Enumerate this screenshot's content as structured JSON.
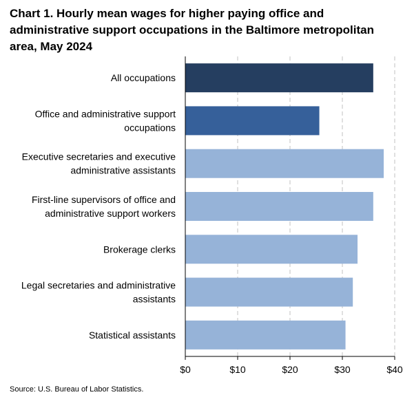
{
  "title_lines": [
    "Chart 1. Hourly mean wages for higher paying office and",
    "administrative support occupations in the Baltimore metropolitan",
    "area, May 2024"
  ],
  "source": "Source: U.S. Bureau of Labor Statistics.",
  "colors": {
    "all_occupations": "#253e60",
    "office_admin": "#36609a",
    "detail": "#96b3d8",
    "grid": "#c0c0c0",
    "axis": "#000000"
  },
  "chart_data": {
    "type": "bar",
    "orientation": "horizontal",
    "title": "Chart 1. Hourly mean wages for higher paying office and administrative support occupations in the Baltimore metropolitan area, May 2024",
    "categories": [
      [
        "All occupations"
      ],
      [
        "Office and administrative support",
        "occupations"
      ],
      [
        "Executive secretaries and executive",
        "administrative assistants"
      ],
      [
        "First-line supervisors of office and",
        "administrative support workers"
      ],
      [
        "Brokerage clerks"
      ],
      [
        "Legal secretaries and administrative",
        "assistants"
      ],
      [
        "Statistical assistants"
      ]
    ],
    "values": [
      35.9,
      25.6,
      37.9,
      35.9,
      32.9,
      32.0,
      30.6
    ],
    "bar_color_keys": [
      "all_occupations",
      "office_admin",
      "detail",
      "detail",
      "detail",
      "detail",
      "detail"
    ],
    "xlim": [
      0,
      40
    ],
    "xticks": [
      0,
      10,
      20,
      30,
      40
    ],
    "xtick_labels": [
      "$0",
      "$10",
      "$20",
      "$30",
      "$40"
    ],
    "grid": "vertical dashed",
    "legend": "none"
  }
}
